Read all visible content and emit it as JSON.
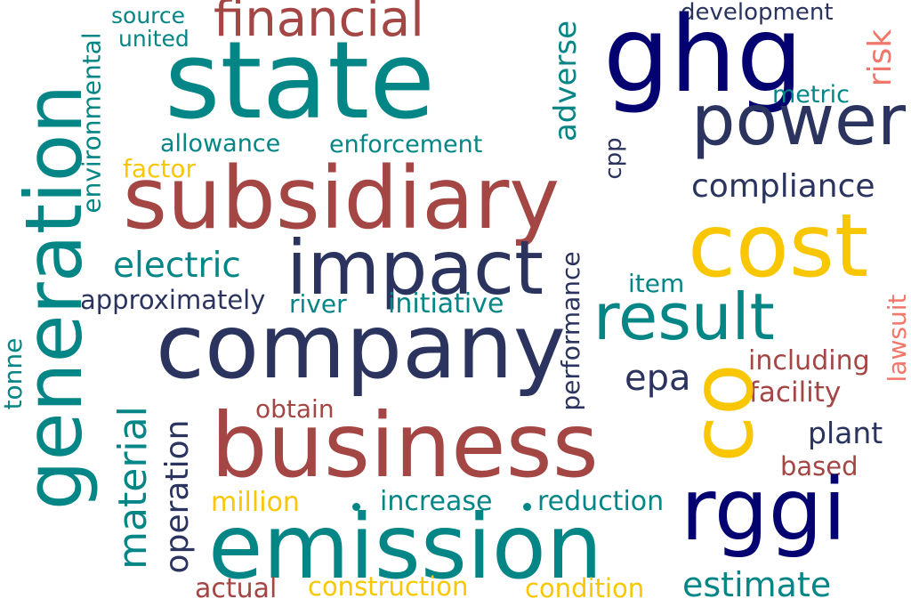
{
  "colors": {
    "background": "#ffffff",
    "teal": "#048586",
    "rust": "#A34644",
    "navy": "#2B335F",
    "dark_navy": "#040270",
    "yellow": "#F8C702",
    "salmon": "#F2766A"
  },
  "words": {
    "state": "state",
    "generation": "generation",
    "subsidiary": "subsidiary",
    "ghg": "ghg",
    "power": "power",
    "cost": "cost",
    "company": "company",
    "business": "business",
    "emission": "emission",
    "rggi": "rggi",
    "co": "co",
    "impact": "impact",
    "result": "result",
    "financial": "financial",
    "compliance": "compliance",
    "electric": "electric",
    "material": "material",
    "operation": "operation",
    "adverse": "adverse",
    "epa": "epa",
    "estimate": "estimate",
    "plant": "plant",
    "source": "source",
    "united": "united",
    "development": "development",
    "metric": "metric",
    "risk": "risk",
    "environmental": "environmental",
    "allowance": "allowance",
    "enforcement": "enforcement",
    "factor": "factor",
    "cpp": "cpp",
    "item": "item",
    "approximately": "approximately",
    "river": "river",
    "initiative": "initiative",
    "performance": "performance",
    "lawsuit": "lawsuit",
    "including": "including",
    "facility": "facility",
    "tonne": "tonne",
    "obtain": "obtain",
    "based": "based",
    "million": "million",
    "increase": "increase",
    "reduction": "reduction",
    "actual": "actual",
    "construction": "construction",
    "condition": "condition"
  }
}
